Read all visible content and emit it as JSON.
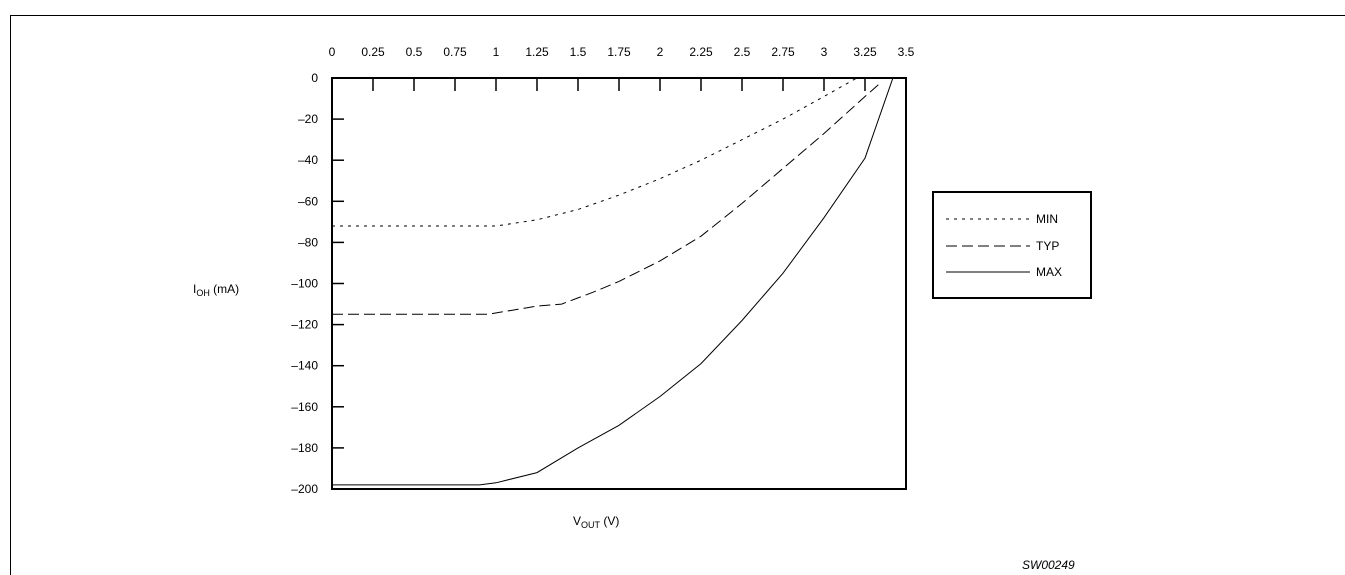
{
  "chart_data": {
    "type": "line",
    "xlabel": {
      "main": "V",
      "sub": "OUT",
      "unit": " (V)"
    },
    "ylabel": {
      "main": "I",
      "sub": "OH",
      "unit": " (mA)"
    },
    "x_ticks": [
      "0",
      "0.25",
      "0.5",
      "0.75",
      "1",
      "1.25",
      "1.5",
      "1.75",
      "2",
      "2.25",
      "2.5",
      "2.75",
      "3",
      "3.25",
      "3.5"
    ],
    "y_ticks": [
      "0",
      "–20",
      "–40",
      "–60",
      "–80",
      "–100",
      "–120",
      "–140",
      "–160",
      "–180",
      "–200"
    ],
    "xlim": [
      0,
      3.5
    ],
    "ylim": [
      -200,
      0
    ],
    "legend_position": "right",
    "series": [
      {
        "name": "MIN",
        "style": "dotted",
        "x": [
          0,
          1.0,
          1.25,
          1.5,
          1.75,
          2.0,
          2.25,
          2.5,
          2.75,
          3.0,
          3.2
        ],
        "y": [
          -72,
          -72,
          -69,
          -64,
          -57,
          -49,
          -40,
          -30,
          -20,
          -9,
          0
        ]
      },
      {
        "name": "TYP",
        "style": "dashed",
        "x": [
          0,
          0.95,
          1.1,
          1.25,
          1.4,
          1.5,
          1.6,
          1.75,
          2.0,
          2.25,
          2.5,
          2.75,
          3.0,
          3.25,
          3.35
        ],
        "y": [
          -115,
          -115,
          -113,
          -111,
          -110,
          -107,
          -104,
          -99,
          -89,
          -77,
          -61,
          -44,
          -27,
          -9,
          -2
        ]
      },
      {
        "name": "MAX",
        "style": "solid",
        "x": [
          0,
          0.9,
          1.0,
          1.25,
          1.5,
          1.75,
          2.0,
          2.25,
          2.5,
          2.75,
          3.0,
          3.25,
          3.42
        ],
        "y": [
          -198,
          -198,
          -197,
          -192,
          -180,
          -169,
          -155,
          -139,
          -118,
          -95,
          -68,
          -39,
          0
        ]
      }
    ]
  },
  "footer_code": "SW00249"
}
